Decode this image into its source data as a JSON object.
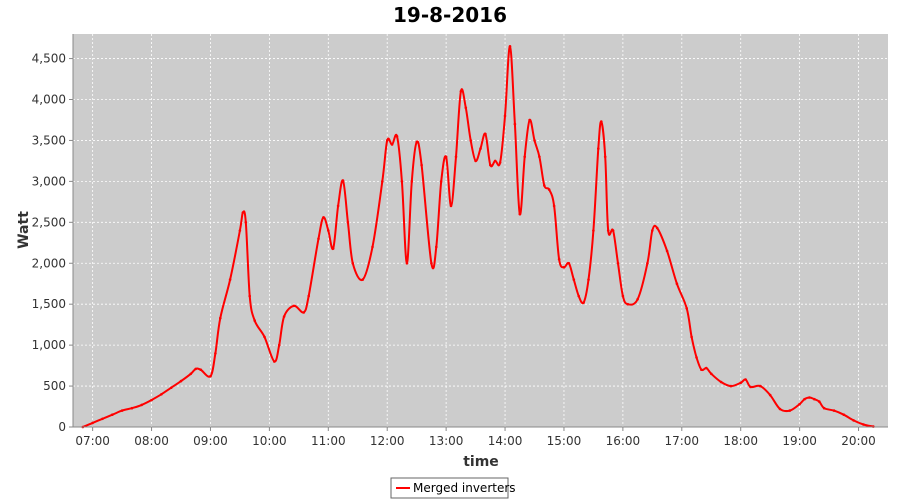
{
  "chart_data": {
    "type": "line",
    "title": "19-8-2016",
    "xlabel": "time",
    "ylabel": "Watt",
    "ylim": [
      0,
      4800
    ],
    "xlim": [
      "06:40",
      "20:30"
    ],
    "grid": true,
    "background": "#cccccc",
    "legend_position": "bottom-center",
    "yticks": [
      "0",
      "500",
      "1,000",
      "1,500",
      "2,000",
      "2,500",
      "3,000",
      "3,500",
      "4,000",
      "4,500"
    ],
    "xticks": [
      "07:00",
      "08:00",
      "09:00",
      "10:00",
      "11:00",
      "12:00",
      "13:00",
      "14:00",
      "15:00",
      "16:00",
      "17:00",
      "18:00",
      "19:00",
      "20:00"
    ],
    "series": [
      {
        "name": "Merged inverters",
        "color": "#ff0000",
        "points": [
          [
            "06:50",
            0
          ],
          [
            "07:00",
            50
          ],
          [
            "07:10",
            100
          ],
          [
            "07:20",
            150
          ],
          [
            "07:30",
            200
          ],
          [
            "07:40",
            230
          ],
          [
            "07:50",
            270
          ],
          [
            "08:00",
            330
          ],
          [
            "08:10",
            400
          ],
          [
            "08:20",
            480
          ],
          [
            "08:30",
            560
          ],
          [
            "08:40",
            650
          ],
          [
            "08:45",
            710
          ],
          [
            "08:50",
            700
          ],
          [
            "09:00",
            620
          ],
          [
            "09:05",
            900
          ],
          [
            "09:10",
            1330
          ],
          [
            "09:20",
            1800
          ],
          [
            "09:30",
            2400
          ],
          [
            "09:33",
            2620
          ],
          [
            "09:36",
            2500
          ],
          [
            "09:40",
            1600
          ],
          [
            "09:45",
            1300
          ],
          [
            "09:55",
            1100
          ],
          [
            "10:05",
            800
          ],
          [
            "10:10",
            1000
          ],
          [
            "10:15",
            1350
          ],
          [
            "10:25",
            1480
          ],
          [
            "10:35",
            1400
          ],
          [
            "10:40",
            1600
          ],
          [
            "10:50",
            2300
          ],
          [
            "10:55",
            2560
          ],
          [
            "11:00",
            2400
          ],
          [
            "11:05",
            2180
          ],
          [
            "11:10",
            2700
          ],
          [
            "11:15",
            3010
          ],
          [
            "11:20",
            2500
          ],
          [
            "11:25",
            2000
          ],
          [
            "11:35",
            1800
          ],
          [
            "11:45",
            2200
          ],
          [
            "11:55",
            3000
          ],
          [
            "12:00",
            3500
          ],
          [
            "12:05",
            3450
          ],
          [
            "12:10",
            3550
          ],
          [
            "12:15",
            3000
          ],
          [
            "12:20",
            2000
          ],
          [
            "12:25",
            3000
          ],
          [
            "12:30",
            3480
          ],
          [
            "12:35",
            3200
          ],
          [
            "12:45",
            2000
          ],
          [
            "12:50",
            2200
          ],
          [
            "12:55",
            3000
          ],
          [
            "13:00",
            3300
          ],
          [
            "13:05",
            2700
          ],
          [
            "13:10",
            3300
          ],
          [
            "13:15",
            4100
          ],
          [
            "13:20",
            3900
          ],
          [
            "13:25",
            3500
          ],
          [
            "13:30",
            3250
          ],
          [
            "13:35",
            3400
          ],
          [
            "13:40",
            3580
          ],
          [
            "13:45",
            3200
          ],
          [
            "13:50",
            3250
          ],
          [
            "13:55",
            3230
          ],
          [
            "14:00",
            3800
          ],
          [
            "14:05",
            4650
          ],
          [
            "14:10",
            3700
          ],
          [
            "14:15",
            2600
          ],
          [
            "14:20",
            3300
          ],
          [
            "14:25",
            3750
          ],
          [
            "14:30",
            3500
          ],
          [
            "14:35",
            3300
          ],
          [
            "14:40",
            2950
          ],
          [
            "14:45",
            2900
          ],
          [
            "14:50",
            2700
          ],
          [
            "14:55",
            2050
          ],
          [
            "15:00",
            1950
          ],
          [
            "15:05",
            2000
          ],
          [
            "15:10",
            1800
          ],
          [
            "15:15",
            1600
          ],
          [
            "15:20",
            1520
          ],
          [
            "15:25",
            1800
          ],
          [
            "15:30",
            2400
          ],
          [
            "15:35",
            3400
          ],
          [
            "15:38",
            3730
          ],
          [
            "15:42",
            3300
          ],
          [
            "15:45",
            2400
          ],
          [
            "15:50",
            2400
          ],
          [
            "15:55",
            2000
          ],
          [
            "16:00",
            1600
          ],
          [
            "16:05",
            1500
          ],
          [
            "16:15",
            1560
          ],
          [
            "16:25",
            2000
          ],
          [
            "16:30",
            2400
          ],
          [
            "16:35",
            2430
          ],
          [
            "16:45",
            2150
          ],
          [
            "16:55",
            1750
          ],
          [
            "17:05",
            1450
          ],
          [
            "17:10",
            1100
          ],
          [
            "17:15",
            850
          ],
          [
            "17:20",
            700
          ],
          [
            "17:25",
            720
          ],
          [
            "17:30",
            650
          ],
          [
            "17:40",
            550
          ],
          [
            "17:50",
            500
          ],
          [
            "18:00",
            540
          ],
          [
            "18:05",
            580
          ],
          [
            "18:10",
            490
          ],
          [
            "18:20",
            500
          ],
          [
            "18:30",
            390
          ],
          [
            "18:40",
            220
          ],
          [
            "18:50",
            200
          ],
          [
            "19:00",
            280
          ],
          [
            "19:05",
            340
          ],
          [
            "19:10",
            360
          ],
          [
            "19:15",
            340
          ],
          [
            "19:20",
            310
          ],
          [
            "19:25",
            230
          ],
          [
            "19:35",
            200
          ],
          [
            "19:45",
            150
          ],
          [
            "19:55",
            80
          ],
          [
            "20:05",
            30
          ],
          [
            "20:15",
            5
          ]
        ]
      }
    ]
  }
}
